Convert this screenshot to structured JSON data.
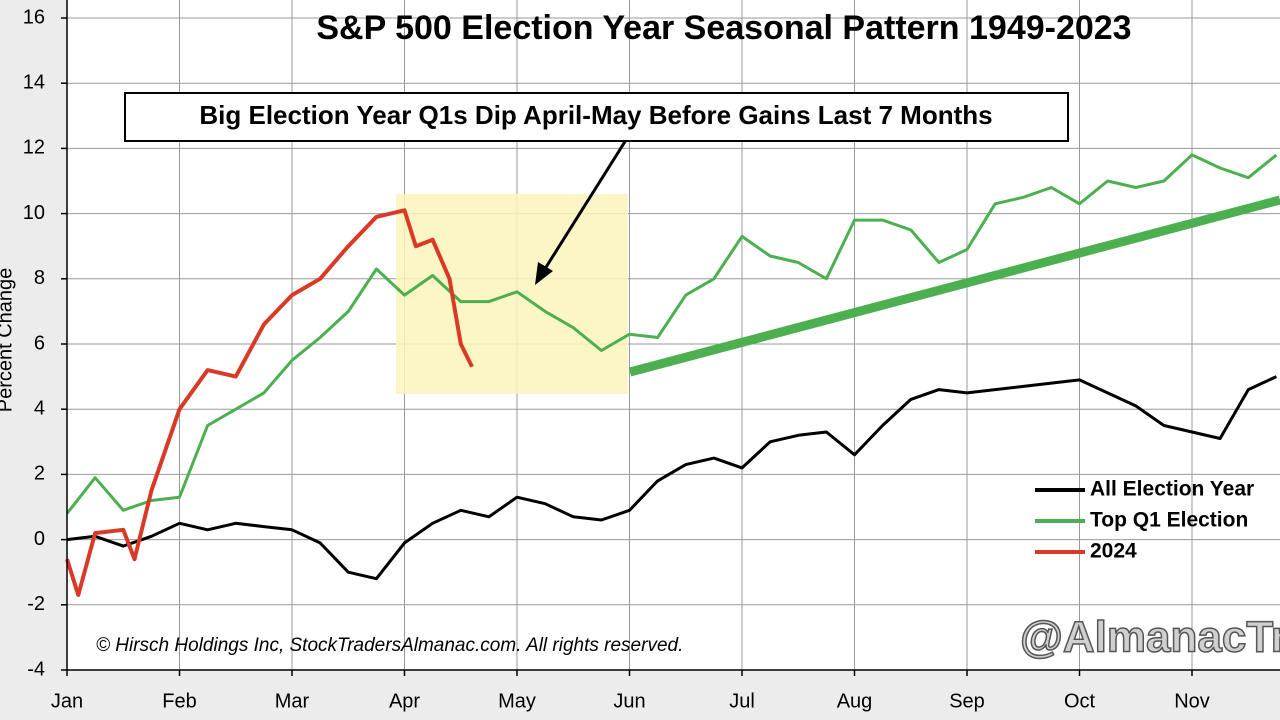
{
  "chart_data": {
    "type": "line",
    "title": "S&P 500 Election Year Seasonal Pattern 1949-2023",
    "annotation": "Big Election Year Q1s Dip April-May Before Gains Last 7 Months",
    "y_label": "Percent Change",
    "copyright": "© Hirsch Holdings Inc, StockTradersAlmanac.com. All rights reserved.",
    "watermark": "@AlmanacTra",
    "xlim": [
      0,
      10.78
    ],
    "xticks": [
      {
        "value": 0,
        "label": "Jan"
      },
      {
        "value": 1,
        "label": "Feb"
      },
      {
        "value": 2,
        "label": "Mar"
      },
      {
        "value": 3,
        "label": "Apr"
      },
      {
        "value": 4,
        "label": "May"
      },
      {
        "value": 5,
        "label": "Jun"
      },
      {
        "value": 6,
        "label": "Jul"
      },
      {
        "value": 7,
        "label": "Aug"
      },
      {
        "value": 8,
        "label": "Sep"
      },
      {
        "value": 9,
        "label": "Oct"
      },
      {
        "value": 10,
        "label": "Nov"
      }
    ],
    "ylim": [
      -4,
      16
    ],
    "yticks": [
      -4,
      -2,
      0,
      2,
      4,
      6,
      8,
      10,
      12,
      14,
      16
    ],
    "grid": true,
    "legend": "lower right",
    "series": [
      {
        "name": "All Election Year",
        "color": "#000000",
        "x": [
          0,
          0.25,
          0.5,
          0.75,
          1,
          1.25,
          1.5,
          1.75,
          2,
          2.25,
          2.5,
          2.75,
          3,
          3.25,
          3.5,
          3.75,
          4,
          4.25,
          4.5,
          4.75,
          5,
          5.25,
          5.5,
          5.75,
          6,
          6.25,
          6.5,
          6.75,
          7,
          7.25,
          7.5,
          7.75,
          8,
          8.25,
          8.5,
          8.75,
          9,
          9.25,
          9.5,
          9.75,
          10,
          10.25,
          10.5,
          10.75
        ],
        "values": [
          0,
          0.1,
          -0.2,
          0.1,
          0.5,
          0.3,
          0.5,
          0.4,
          0.3,
          -0.1,
          -1.0,
          -1.2,
          -0.1,
          0.5,
          0.9,
          0.7,
          1.3,
          1.1,
          0.7,
          0.6,
          0.9,
          1.8,
          2.3,
          2.5,
          2.2,
          3.0,
          3.2,
          3.3,
          2.6,
          3.5,
          4.3,
          4.6,
          4.5,
          4.6,
          4.7,
          4.8,
          4.9,
          4.5,
          4.1,
          3.5,
          3.3,
          3.1,
          4.6,
          5.0
        ]
      },
      {
        "name": "Top Q1 Election",
        "color": "#4caf50",
        "x": [
          0,
          0.25,
          0.5,
          0.75,
          1,
          1.25,
          1.5,
          1.75,
          2,
          2.25,
          2.5,
          2.75,
          3,
          3.25,
          3.5,
          3.75,
          4,
          4.25,
          4.5,
          4.75,
          5,
          5.25,
          5.5,
          5.75,
          6,
          6.25,
          6.5,
          6.75,
          7,
          7.25,
          7.5,
          7.75,
          8,
          8.25,
          8.5,
          8.75,
          9,
          9.25,
          9.5,
          9.75,
          10,
          10.25,
          10.5,
          10.75
        ],
        "values": [
          0.8,
          1.9,
          0.9,
          1.2,
          1.3,
          3.5,
          4.0,
          4.5,
          5.5,
          6.2,
          7.0,
          8.3,
          7.5,
          8.1,
          7.3,
          7.3,
          7.6,
          7.0,
          6.5,
          5.8,
          6.3,
          6.2,
          7.5,
          8.0,
          9.3,
          8.7,
          8.5,
          8.0,
          9.8,
          9.8,
          9.5,
          8.5,
          8.9,
          10.3,
          10.5,
          10.8,
          10.3,
          11.0,
          10.8,
          11.0,
          11.8,
          11.4,
          11.1,
          11.8
        ]
      },
      {
        "name": "2024",
        "color": "#d93a26",
        "x": [
          0,
          0.1,
          0.25,
          0.5,
          0.6,
          0.75,
          1,
          1.25,
          1.5,
          1.75,
          2,
          2.25,
          2.5,
          2.75,
          3,
          3.1,
          3.25,
          3.4,
          3.5,
          3.6
        ],
        "values": [
          -0.6,
          -1.7,
          0.2,
          0.3,
          -0.6,
          1.5,
          4.0,
          5.2,
          5.0,
          6.6,
          7.5,
          8.0,
          9.0,
          9.9,
          10.1,
          9.0,
          9.2,
          8.0,
          6.0,
          5.3
        ]
      }
    ]
  }
}
